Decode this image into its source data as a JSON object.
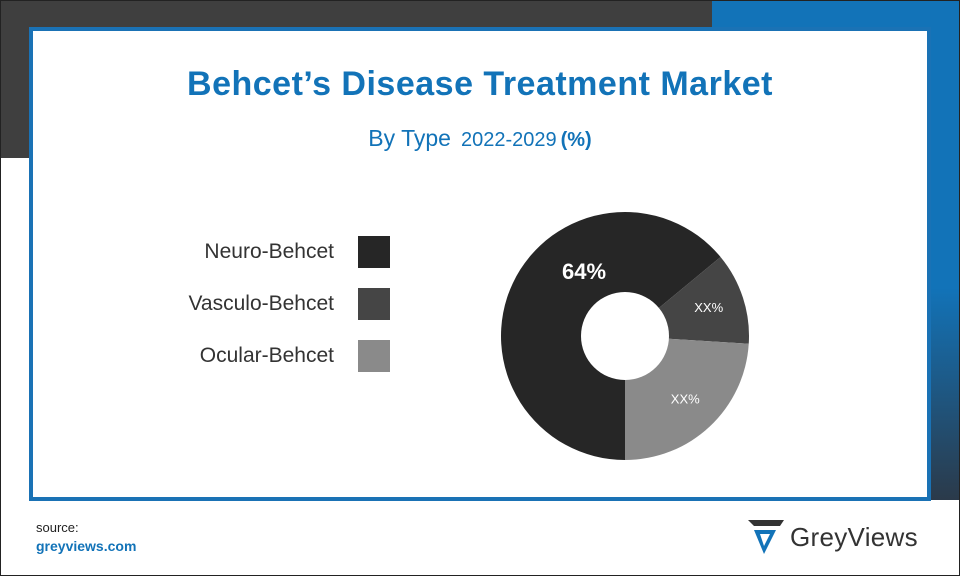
{
  "chart_data": {
    "type": "pie",
    "title": "Behcet’s Disease Treatment Market",
    "subtitle": {
      "by": "By Type",
      "years": "2022-2029",
      "unit": "(%)"
    },
    "categories": [
      "Neuro-Behcet",
      "Vasculo-Behcet",
      "Ocular-Behcet"
    ],
    "values": [
      64,
      12,
      24
    ],
    "labels": [
      "64%",
      "XX%",
      "XX%"
    ],
    "colors": [
      "#262626",
      "#454545",
      "#8a8a8a"
    ],
    "donut": true,
    "legend_position": "left"
  },
  "source": {
    "label": "source:",
    "site": "greyviews.com"
  },
  "brand": {
    "name": "GreyViews",
    "logo_icon": "greyviews-logo-icon",
    "colors": {
      "blue": "#1273b8",
      "dark": "#3f3f3f"
    }
  }
}
